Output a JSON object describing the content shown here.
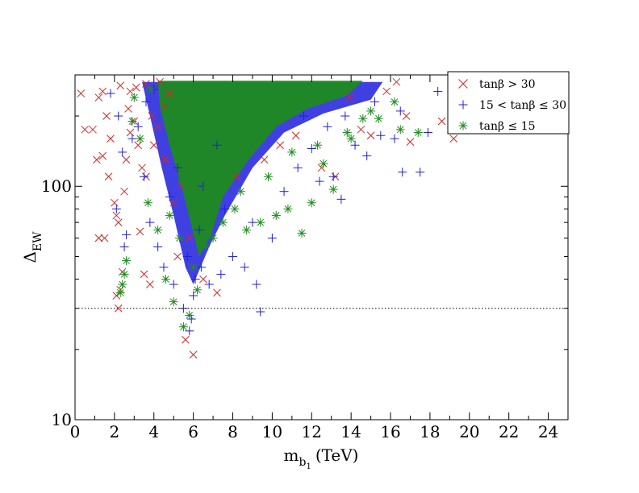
{
  "chart_data": {
    "type": "scatter",
    "title": "",
    "xlabel": "m",
    "xlabel_sub": "b",
    "xlabel_subsub": "1",
    "xlabel_unit": "(TeV)",
    "ylabel": "Δ",
    "ylabel_sub": "EW",
    "xlim": [
      0,
      25
    ],
    "ylim": [
      10,
      300
    ],
    "yscale": "log",
    "x_ticks": [
      "0",
      "2",
      "4",
      "6",
      "8",
      "10",
      "12",
      "14",
      "16",
      "18",
      "20",
      "22",
      "24"
    ],
    "x_tick_values": [
      0,
      2,
      4,
      6,
      8,
      10,
      12,
      14,
      16,
      18,
      20,
      22,
      24
    ],
    "y_ticks": [
      "10",
      "100"
    ],
    "y_tick_values": [
      10,
      100
    ],
    "reference_line_y": 30,
    "legend_position": "top-right",
    "series": [
      {
        "name": "tanβ > 30",
        "color": "#d62728",
        "marker": "x",
        "points": [
          [
            0.3,
            250
          ],
          [
            0.5,
            175
          ],
          [
            0.9,
            175
          ],
          [
            1.2,
            240
          ],
          [
            1.4,
            255
          ],
          [
            1.6,
            200
          ],
          [
            1.2,
            60
          ],
          [
            1.5,
            60
          ],
          [
            1.1,
            130
          ],
          [
            1.4,
            135
          ],
          [
            1.7,
            110
          ],
          [
            2.0,
            85
          ],
          [
            2.1,
            34
          ],
          [
            2.2,
            30
          ],
          [
            2.3,
            36
          ],
          [
            2.4,
            43
          ],
          [
            2.1,
            75
          ],
          [
            2.2,
            70
          ],
          [
            2.5,
            95
          ],
          [
            2.6,
            130
          ],
          [
            2.8,
            170
          ],
          [
            3.0,
            190
          ],
          [
            3.2,
            150
          ],
          [
            3.4,
            120
          ],
          [
            3.5,
            42
          ],
          [
            3.8,
            38
          ],
          [
            3.3,
            64
          ],
          [
            3.6,
            110
          ],
          [
            4.0,
            150
          ],
          [
            4.2,
            180
          ],
          [
            4.5,
            220
          ],
          [
            4.8,
            250
          ],
          [
            2.3,
            270
          ],
          [
            2.8,
            255
          ],
          [
            3.1,
            265
          ],
          [
            3.6,
            275
          ],
          [
            4.3,
            280
          ],
          [
            5.6,
            22
          ],
          [
            6.0,
            19
          ],
          [
            5.2,
            50
          ],
          [
            5.0,
            85
          ],
          [
            5.4,
            100
          ],
          [
            6.5,
            40
          ],
          [
            7.2,
            35
          ],
          [
            8.2,
            110
          ],
          [
            9.6,
            130
          ],
          [
            10.4,
            150
          ],
          [
            11.2,
            165
          ],
          [
            12.5,
            120
          ],
          [
            13.2,
            110
          ],
          [
            13.9,
            240
          ],
          [
            15.0,
            165
          ],
          [
            16.3,
            280
          ],
          [
            17.0,
            155
          ],
          [
            18.6,
            190
          ],
          [
            19.2,
            160
          ],
          [
            16.8,
            200
          ],
          [
            15.8,
            255
          ],
          [
            14.5,
            175
          ],
          [
            1.8,
            160
          ],
          [
            2.7,
            215
          ],
          [
            3.9,
            200
          ],
          [
            4.6,
            130
          ],
          [
            5.8,
            60
          ]
        ]
      },
      {
        "name": "15 < tanβ ≤ 30",
        "color": "#1f1fdd",
        "marker": "+",
        "points": [
          [
            1.8,
            250
          ],
          [
            2.2,
            200
          ],
          [
            2.4,
            140
          ],
          [
            2.5,
            55
          ],
          [
            2.6,
            62
          ],
          [
            2.1,
            80
          ],
          [
            2.9,
            160
          ],
          [
            3.2,
            180
          ],
          [
            3.5,
            110
          ],
          [
            3.8,
            70
          ],
          [
            4.2,
            55
          ],
          [
            4.5,
            45
          ],
          [
            5.0,
            38
          ],
          [
            5.5,
            30
          ],
          [
            5.8,
            24
          ],
          [
            5.9,
            27
          ],
          [
            6.0,
            34
          ],
          [
            6.1,
            40
          ],
          [
            5.7,
            50
          ],
          [
            6.4,
            45
          ],
          [
            6.8,
            38
          ],
          [
            7.4,
            42
          ],
          [
            8.0,
            50
          ],
          [
            8.6,
            45
          ],
          [
            9.2,
            38
          ],
          [
            9.4,
            29
          ],
          [
            10.0,
            60
          ],
          [
            10.6,
            95
          ],
          [
            11.3,
            120
          ],
          [
            12.0,
            145
          ],
          [
            12.4,
            105
          ],
          [
            13.1,
            110
          ],
          [
            13.5,
            88
          ],
          [
            14.2,
            150
          ],
          [
            14.8,
            135
          ],
          [
            15.5,
            165
          ],
          [
            16.2,
            160
          ],
          [
            16.6,
            115
          ],
          [
            17.5,
            115
          ],
          [
            17.9,
            170
          ],
          [
            18.4,
            255
          ],
          [
            16.5,
            210
          ],
          [
            15.2,
            230
          ],
          [
            13.7,
            200
          ],
          [
            12.8,
            180
          ],
          [
            11.6,
            200
          ],
          [
            6.5,
            100
          ],
          [
            7.2,
            150
          ],
          [
            4.8,
            90
          ],
          [
            5.2,
            120
          ],
          [
            3.6,
            230
          ],
          [
            4.0,
            260
          ],
          [
            6.3,
            65
          ],
          [
            7.6,
            80
          ],
          [
            9.0,
            70
          ]
        ]
      },
      {
        "name": "tanβ ≤ 15",
        "color": "#1e8b1e",
        "marker": "*",
        "points": [
          [
            2.4,
            38
          ],
          [
            2.5,
            42
          ],
          [
            2.6,
            48
          ],
          [
            2.3,
            35
          ],
          [
            2.9,
            190
          ],
          [
            3.3,
            160
          ],
          [
            3.7,
            85
          ],
          [
            4.2,
            65
          ],
          [
            4.6,
            40
          ],
          [
            5.0,
            32
          ],
          [
            5.5,
            25
          ],
          [
            5.8,
            28
          ],
          [
            6.2,
            36
          ],
          [
            6.0,
            45
          ],
          [
            6.6,
            55
          ],
          [
            7.0,
            60
          ],
          [
            7.5,
            70
          ],
          [
            8.1,
            80
          ],
          [
            8.7,
            65
          ],
          [
            9.4,
            70
          ],
          [
            10.2,
            75
          ],
          [
            10.8,
            80
          ],
          [
            11.5,
            63
          ],
          [
            12.0,
            85
          ],
          [
            12.6,
            125
          ],
          [
            13.1,
            97
          ],
          [
            13.8,
            170
          ],
          [
            14.6,
            195
          ],
          [
            15.4,
            195
          ],
          [
            16.2,
            230
          ],
          [
            17.4,
            170
          ],
          [
            16.5,
            175
          ],
          [
            15.0,
            210
          ],
          [
            14.0,
            160
          ],
          [
            12.3,
            150
          ],
          [
            6.7,
            100
          ],
          [
            7.3,
            125
          ],
          [
            5.4,
            105
          ],
          [
            4.8,
            75
          ],
          [
            3.0,
            240
          ],
          [
            3.8,
            260
          ],
          [
            5.3,
            60
          ],
          [
            8.4,
            95
          ],
          [
            9.8,
            110
          ],
          [
            11.0,
            140
          ]
        ]
      }
    ]
  }
}
